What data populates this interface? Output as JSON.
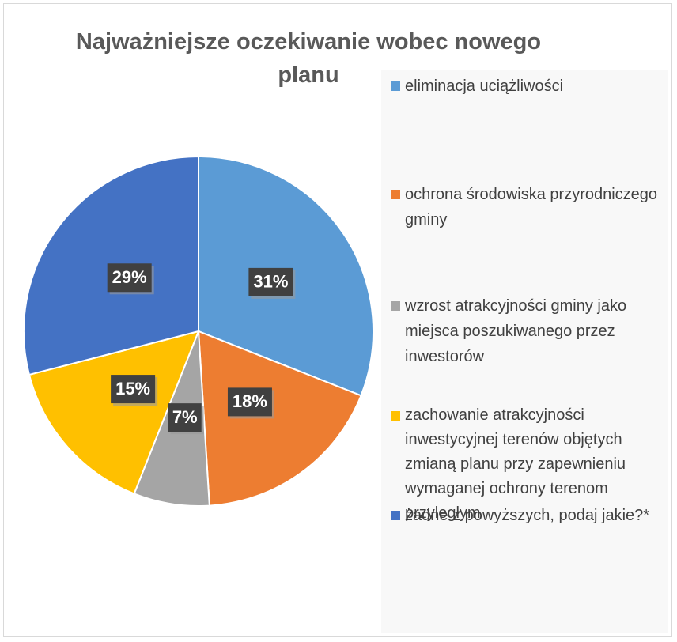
{
  "chart_data": {
    "type": "pie",
    "title": "Najważniejsze oczekiwanie wobec nowego planu",
    "categories": [
      "eliminacja uciążliwości",
      "ochrona środowiska przyrodniczego gminy",
      "wzrost atrakcyjności gminy jako miejsca poszukiwanego przez inwestorów",
      "zachowanie atrakcyjności inwestycyjnej terenów objętych zmianą planu przy zapewnieniu wymaganej ochrony terenom przyległym",
      "żadne z powyższych, podaj jakie?*"
    ],
    "values": [
      31,
      18,
      7,
      15,
      29
    ],
    "value_labels": [
      "31%",
      "18%",
      "7%",
      "15%",
      "29%"
    ],
    "colors": [
      "#5b9bd5",
      "#ed7d31",
      "#a5a5a5",
      "#ffc000",
      "#4472c4"
    ],
    "legend": "right"
  }
}
